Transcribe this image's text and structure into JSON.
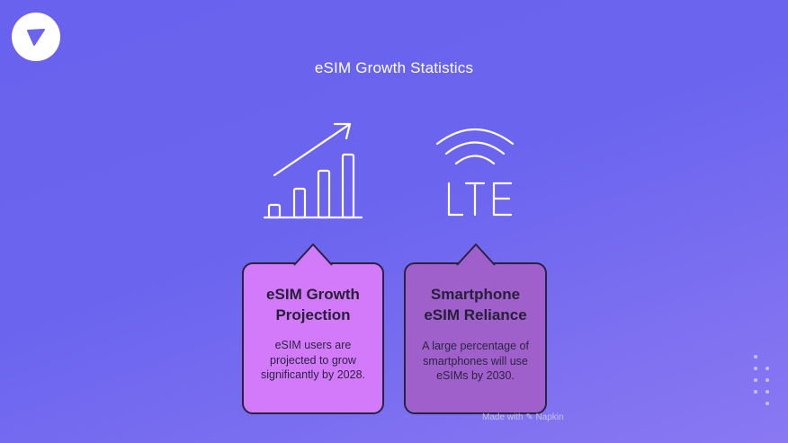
{
  "title": "eSIM Growth Statistics",
  "cards": [
    {
      "icon": "growth-chart-icon",
      "title": "eSIM Growth Projection",
      "text": "eSIM users are projected to grow significantly by 2028.",
      "color": "#d27af9"
    },
    {
      "icon": "lte-signal-icon",
      "title": "Smartphone eSIM Reliance",
      "text": "A large percentage of smartphones will use eSIMs by 2030.",
      "color": "#a060cc"
    }
  ],
  "footer": {
    "watermark": "Made with ✎ Napkin"
  },
  "colors": {
    "background": "#6a64ef",
    "text_dark": "#262038"
  }
}
